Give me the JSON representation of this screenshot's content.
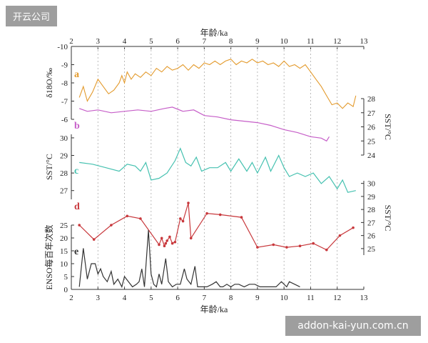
{
  "watermark_top_left": "开云公司",
  "watermark_bottom_right": "addon-kai-yun.com.cn",
  "chart_data": {
    "type": "line",
    "x_axis": {
      "label": "年龄/ka",
      "ticks": [
        2,
        3,
        4,
        5,
        6,
        7,
        8,
        9,
        10,
        11,
        12,
        13
      ],
      "range": [
        2,
        13
      ]
    },
    "panels": [
      {
        "id": "a",
        "tag": "a",
        "color": "#e39a2c",
        "ylabel": "δ18O/‰",
        "axis": "left",
        "range": [
          -10,
          -6
        ],
        "ticks": [
          -10,
          -9,
          -8,
          -7,
          -6
        ],
        "points": [
          [
            2.3,
            -7.2
          ],
          [
            2.45,
            -7.8
          ],
          [
            2.6,
            -7.0
          ],
          [
            2.8,
            -7.5
          ],
          [
            3.0,
            -8.2
          ],
          [
            3.2,
            -7.8
          ],
          [
            3.4,
            -7.4
          ],
          [
            3.6,
            -7.6
          ],
          [
            3.8,
            -8.0
          ],
          [
            3.9,
            -8.4
          ],
          [
            4.0,
            -8.0
          ],
          [
            4.1,
            -8.6
          ],
          [
            4.25,
            -8.2
          ],
          [
            4.4,
            -8.5
          ],
          [
            4.6,
            -8.3
          ],
          [
            4.8,
            -8.6
          ],
          [
            5.0,
            -8.4
          ],
          [
            5.2,
            -8.8
          ],
          [
            5.4,
            -8.6
          ],
          [
            5.6,
            -8.9
          ],
          [
            5.8,
            -8.7
          ],
          [
            6.0,
            -8.8
          ],
          [
            6.2,
            -9.0
          ],
          [
            6.4,
            -8.7
          ],
          [
            6.6,
            -9.0
          ],
          [
            6.8,
            -8.8
          ],
          [
            7.0,
            -9.1
          ],
          [
            7.2,
            -9.0
          ],
          [
            7.4,
            -9.2
          ],
          [
            7.6,
            -9.0
          ],
          [
            7.8,
            -9.2
          ],
          [
            8.0,
            -9.3
          ],
          [
            8.2,
            -9.0
          ],
          [
            8.4,
            -9.2
          ],
          [
            8.6,
            -9.1
          ],
          [
            8.8,
            -9.3
          ],
          [
            9.0,
            -9.1
          ],
          [
            9.2,
            -9.2
          ],
          [
            9.4,
            -9.0
          ],
          [
            9.6,
            -9.1
          ],
          [
            9.8,
            -8.9
          ],
          [
            10.0,
            -9.2
          ],
          [
            10.2,
            -8.9
          ],
          [
            10.4,
            -9.0
          ],
          [
            10.6,
            -8.8
          ],
          [
            10.8,
            -9.0
          ],
          [
            11.0,
            -8.6
          ],
          [
            11.2,
            -8.2
          ],
          [
            11.4,
            -7.8
          ],
          [
            11.6,
            -7.3
          ],
          [
            11.8,
            -6.8
          ],
          [
            12.0,
            -6.9
          ],
          [
            12.2,
            -6.6
          ],
          [
            12.4,
            -6.9
          ],
          [
            12.6,
            -6.7
          ],
          [
            12.7,
            -7.3
          ]
        ]
      },
      {
        "id": "b",
        "tag": "b",
        "color": "#c65ec8",
        "ylabel": "SST/°C",
        "axis": "right",
        "range": [
          24,
          28
        ],
        "ticks": [
          24,
          25,
          26,
          27,
          28
        ],
        "points": [
          [
            2.3,
            27.3
          ],
          [
            2.6,
            27.1
          ],
          [
            3.0,
            27.2
          ],
          [
            3.5,
            27.0
          ],
          [
            4.0,
            27.1
          ],
          [
            4.5,
            27.2
          ],
          [
            5.0,
            27.1
          ],
          [
            5.5,
            27.3
          ],
          [
            5.8,
            27.4
          ],
          [
            6.2,
            27.1
          ],
          [
            6.6,
            27.2
          ],
          [
            7.0,
            26.8
          ],
          [
            7.5,
            26.7
          ],
          [
            8.0,
            26.5
          ],
          [
            8.5,
            26.4
          ],
          [
            9.0,
            26.3
          ],
          [
            9.5,
            26.1
          ],
          [
            10.0,
            25.8
          ],
          [
            10.5,
            25.6
          ],
          [
            11.0,
            25.3
          ],
          [
            11.4,
            25.2
          ],
          [
            11.6,
            25.0
          ],
          [
            11.7,
            25.3
          ]
        ]
      },
      {
        "id": "c",
        "tag": "c",
        "color": "#45c1b0",
        "ylabel": "SST/°C",
        "axis": "left",
        "range": [
          26.5,
          30.2
        ],
        "ticks": [
          27,
          28,
          29,
          30
        ],
        "points": [
          [
            2.3,
            28.6
          ],
          [
            2.8,
            28.5
          ],
          [
            3.3,
            28.3
          ],
          [
            3.8,
            28.1
          ],
          [
            4.1,
            28.5
          ],
          [
            4.4,
            28.4
          ],
          [
            4.6,
            28.1
          ],
          [
            4.8,
            28.6
          ],
          [
            5.0,
            27.6
          ],
          [
            5.3,
            27.7
          ],
          [
            5.6,
            28.0
          ],
          [
            5.9,
            28.7
          ],
          [
            6.1,
            29.4
          ],
          [
            6.3,
            28.6
          ],
          [
            6.5,
            28.4
          ],
          [
            6.7,
            28.9
          ],
          [
            6.9,
            28.1
          ],
          [
            7.2,
            28.3
          ],
          [
            7.5,
            28.3
          ],
          [
            7.8,
            28.6
          ],
          [
            8.0,
            28.1
          ],
          [
            8.3,
            28.8
          ],
          [
            8.6,
            28.1
          ],
          [
            8.8,
            28.6
          ],
          [
            9.0,
            28.0
          ],
          [
            9.3,
            28.9
          ],
          [
            9.5,
            28.1
          ],
          [
            9.8,
            29.0
          ],
          [
            10.0,
            28.3
          ],
          [
            10.2,
            27.8
          ],
          [
            10.5,
            28.0
          ],
          [
            10.8,
            27.8
          ],
          [
            11.1,
            28.0
          ],
          [
            11.4,
            27.4
          ],
          [
            11.7,
            27.8
          ],
          [
            12.0,
            27.1
          ],
          [
            12.2,
            27.6
          ],
          [
            12.4,
            26.9
          ],
          [
            12.7,
            27.0
          ]
        ]
      },
      {
        "id": "d",
        "tag": "d",
        "color": "#c8383c",
        "ylabel": "SST/°C",
        "axis": "right",
        "range": [
          24.5,
          30.2
        ],
        "ticks": [
          25,
          26,
          27,
          28,
          29,
          30
        ],
        "points": [
          [
            2.3,
            26.8
          ],
          [
            2.85,
            25.7
          ],
          [
            3.5,
            26.8
          ],
          [
            4.1,
            27.5
          ],
          [
            4.6,
            27.3
          ],
          [
            5.3,
            25.3
          ],
          [
            5.4,
            25.8
          ],
          [
            5.5,
            25.2
          ],
          [
            5.55,
            25.4
          ],
          [
            5.6,
            25.6
          ],
          [
            5.7,
            25.9
          ],
          [
            5.8,
            25.4
          ],
          [
            5.9,
            25.5
          ],
          [
            6.1,
            27.3
          ],
          [
            6.2,
            27.1
          ],
          [
            6.4,
            28.5
          ],
          [
            6.5,
            25.8
          ],
          [
            7.1,
            27.7
          ],
          [
            7.6,
            27.6
          ],
          [
            8.4,
            27.4
          ],
          [
            9.0,
            25.1
          ],
          [
            9.6,
            25.3
          ],
          [
            10.1,
            25.1
          ],
          [
            10.6,
            25.2
          ],
          [
            11.1,
            25.4
          ],
          [
            11.6,
            24.9
          ],
          [
            12.1,
            26.0
          ],
          [
            12.6,
            26.6
          ]
        ]
      },
      {
        "id": "e",
        "tag": "e",
        "color": "#333333",
        "ylabel": "ENSO每百年次数",
        "axis": "left",
        "range": [
          0,
          25
        ],
        "ticks": [
          0,
          5,
          10,
          15,
          20,
          25
        ],
        "points": [
          [
            2.3,
            1
          ],
          [
            2.45,
            16
          ],
          [
            2.6,
            4
          ],
          [
            2.75,
            10
          ],
          [
            2.9,
            10
          ],
          [
            3.0,
            6
          ],
          [
            3.1,
            8
          ],
          [
            3.2,
            5
          ],
          [
            3.35,
            3
          ],
          [
            3.5,
            7
          ],
          [
            3.6,
            2
          ],
          [
            3.75,
            4
          ],
          [
            3.9,
            1
          ],
          [
            4.0,
            5
          ],
          [
            4.15,
            3
          ],
          [
            4.3,
            1
          ],
          [
            4.45,
            2
          ],
          [
            4.55,
            3
          ],
          [
            4.65,
            8
          ],
          [
            4.75,
            1
          ],
          [
            4.9,
            23
          ],
          [
            5.0,
            6
          ],
          [
            5.1,
            2
          ],
          [
            5.2,
            1
          ],
          [
            5.3,
            6
          ],
          [
            5.4,
            2
          ],
          [
            5.55,
            12
          ],
          [
            5.65,
            3
          ],
          [
            5.8,
            1
          ],
          [
            5.95,
            2
          ],
          [
            6.1,
            2
          ],
          [
            6.25,
            8
          ],
          [
            6.35,
            4
          ],
          [
            6.5,
            2
          ],
          [
            6.65,
            9
          ],
          [
            6.75,
            1
          ],
          [
            6.9,
            1
          ],
          [
            7.1,
            1
          ],
          [
            7.3,
            2
          ],
          [
            7.45,
            3
          ],
          [
            7.6,
            1
          ],
          [
            7.7,
            1
          ],
          [
            7.85,
            2
          ],
          [
            8.0,
            1
          ],
          [
            8.15,
            2
          ],
          [
            8.3,
            2
          ],
          [
            8.5,
            1
          ],
          [
            8.7,
            2
          ],
          [
            8.9,
            2
          ],
          [
            9.1,
            1
          ],
          [
            9.4,
            1
          ],
          [
            9.7,
            1
          ],
          [
            9.9,
            3
          ],
          [
            10.1,
            1
          ],
          [
            10.2,
            3
          ],
          [
            10.4,
            2
          ],
          [
            10.6,
            1
          ]
        ]
      }
    ]
  }
}
